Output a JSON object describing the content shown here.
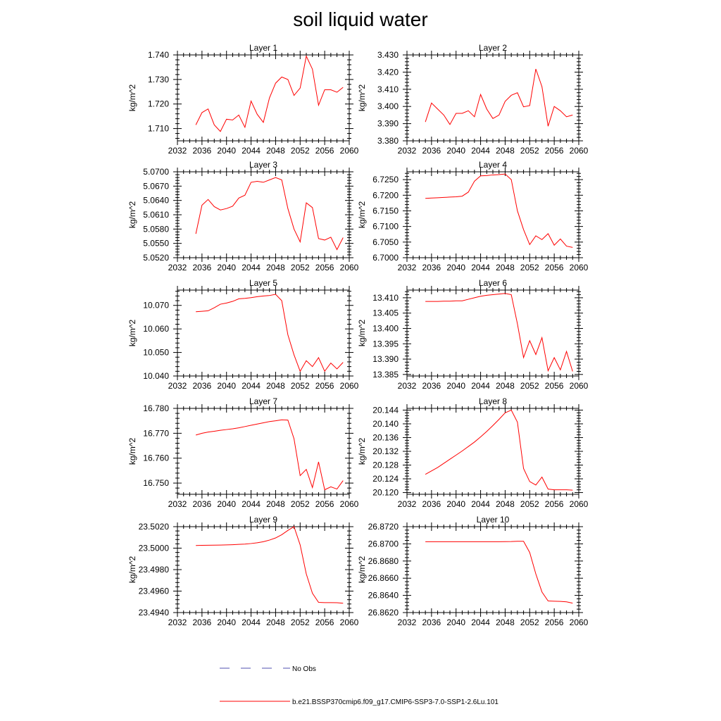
{
  "title": "soil liquid water",
  "chart_data": [
    {
      "type": "line",
      "title": "Layer 1",
      "ylabel": "kg/m^2",
      "xlim": [
        2032,
        2060
      ],
      "xticks": [
        2032,
        2036,
        2040,
        2044,
        2048,
        2052,
        2056,
        2060
      ],
      "ylim": [
        1.705,
        1.74
      ],
      "yticks": [
        "1.710",
        "1.720",
        "1.730",
        "1.740"
      ],
      "series": [
        {
          "name": "b.e21.BSSP370cmip6.f09_g17.CMIP6-SSP3-7.0-SSP1-2.6Lu.101",
          "x": [
            2035,
            2036,
            2037,
            2038,
            2039,
            2040,
            2041,
            2042,
            2043,
            2044,
            2045,
            2046,
            2047,
            2048,
            2049,
            2050,
            2051,
            2052,
            2053,
            2054,
            2055,
            2056,
            2057,
            2058,
            2059
          ],
          "values": [
            1.7115,
            1.7165,
            1.718,
            1.7115,
            1.7088,
            1.7138,
            1.7135,
            1.7155,
            1.7105,
            1.7212,
            1.7158,
            1.7125,
            1.7225,
            1.7285,
            1.731,
            1.73,
            1.7235,
            1.7265,
            1.7395,
            1.7342,
            1.7195,
            1.7258,
            1.7258,
            1.7248,
            1.7268
          ]
        }
      ]
    },
    {
      "type": "line",
      "title": "Layer 2",
      "ylabel": "kg/m^2",
      "xlim": [
        2032,
        2060
      ],
      "xticks": [
        2032,
        2036,
        2040,
        2044,
        2048,
        2052,
        2056,
        2060
      ],
      "ylim": [
        3.38,
        3.43
      ],
      "yticks": [
        "3.380",
        "3.390",
        "3.400",
        "3.410",
        "3.420",
        "3.430"
      ],
      "series": [
        {
          "name": "b.e21.BSSP370cmip6.f09_g17.CMIP6-SSP3-7.0-SSP1-2.6Lu.101",
          "x": [
            2035,
            2036,
            2037,
            2038,
            2039,
            2040,
            2041,
            2042,
            2043,
            2044,
            2045,
            2046,
            2047,
            2048,
            2049,
            2050,
            2051,
            2052,
            2053,
            2054,
            2055,
            2056,
            2057,
            2058,
            2059
          ],
          "values": [
            3.391,
            3.402,
            3.3985,
            3.395,
            3.3895,
            3.396,
            3.396,
            3.3975,
            3.394,
            3.407,
            3.3985,
            3.393,
            3.395,
            3.403,
            3.4065,
            3.408,
            3.3998,
            3.4005,
            3.4218,
            3.4115,
            3.3885,
            3.4,
            3.3975,
            3.394,
            3.395
          ]
        }
      ]
    },
    {
      "type": "line",
      "title": "Layer 3",
      "ylabel": "kg/m^2",
      "xlim": [
        2032,
        2060
      ],
      "xticks": [
        2032,
        2036,
        2040,
        2044,
        2048,
        2052,
        2056,
        2060
      ],
      "ylim": [
        5.052,
        5.07
      ],
      "yticks": [
        "5.0520",
        "5.0550",
        "5.0580",
        "5.0610",
        "5.0640",
        "5.0670",
        "5.0700"
      ],
      "series": [
        {
          "name": "b.e21.BSSP370cmip6.f09_g17.CMIP6-SSP3-7.0-SSP1-2.6Lu.101",
          "x": [
            2035,
            2036,
            2037,
            2038,
            2039,
            2040,
            2041,
            2042,
            2043,
            2044,
            2045,
            2046,
            2047,
            2048,
            2049,
            2050,
            2051,
            2052,
            2053,
            2054,
            2055,
            2056,
            2057,
            2058,
            2059
          ],
          "values": [
            5.057,
            5.063,
            5.0642,
            5.0627,
            5.062,
            5.0623,
            5.0628,
            5.0645,
            5.0651,
            5.0678,
            5.068,
            5.0678,
            5.0683,
            5.0688,
            5.0683,
            5.0623,
            5.058,
            5.0553,
            5.0635,
            5.0625,
            5.056,
            5.0557,
            5.0563,
            5.0537,
            5.0562
          ]
        }
      ]
    },
    {
      "type": "line",
      "title": "Layer 4",
      "ylabel": "kg/m^2",
      "xlim": [
        2032,
        2060
      ],
      "xticks": [
        2032,
        2036,
        2040,
        2044,
        2048,
        2052,
        2056,
        2060
      ],
      "ylim": [
        6.7,
        6.7275
      ],
      "yticks": [
        "6.7000",
        "6.7050",
        "6.7100",
        "6.7150",
        "6.7200",
        "6.7250"
      ],
      "series": [
        {
          "name": "b.e21.BSSP370cmip6.f09_g17.CMIP6-SSP3-7.0-SSP1-2.6Lu.101",
          "x": [
            2035,
            2036,
            2037,
            2038,
            2039,
            2040,
            2041,
            2042,
            2043,
            2044,
            2045,
            2046,
            2047,
            2048,
            2049,
            2050,
            2051,
            2052,
            2053,
            2054,
            2055,
            2056,
            2057,
            2058,
            2059
          ],
          "values": [
            6.719,
            6.7191,
            6.7192,
            6.7193,
            6.7194,
            6.7195,
            6.7197,
            6.721,
            6.7245,
            6.7262,
            6.7263,
            6.7265,
            6.7266,
            6.7268,
            6.725,
            6.715,
            6.709,
            6.7042,
            6.707,
            6.7058,
            6.7077,
            6.704,
            6.706,
            6.7037,
            6.7033
          ]
        }
      ]
    },
    {
      "type": "line",
      "title": "Layer 5",
      "ylabel": "kg/m^2",
      "xlim": [
        2032,
        2060
      ],
      "xticks": [
        2032,
        2036,
        2040,
        2044,
        2048,
        2052,
        2056,
        2060
      ],
      "ylim": [
        10.04,
        10.0765
      ],
      "yticks": [
        "10.040",
        "10.050",
        "10.060",
        "10.070"
      ],
      "series": [
        {
          "name": "b.e21.BSSP370cmip6.f09_g17.CMIP6-SSP3-7.0-SSP1-2.6Lu.101",
          "x": [
            2035,
            2036,
            2037,
            2038,
            2039,
            2040,
            2041,
            2042,
            2043,
            2044,
            2045,
            2046,
            2047,
            2048,
            2049,
            2050,
            2051,
            2052,
            2053,
            2054,
            2055,
            2056,
            2057,
            2058,
            2059
          ],
          "values": [
            10.0673,
            10.0675,
            10.0677,
            10.069,
            10.0705,
            10.071,
            10.0717,
            10.0728,
            10.073,
            10.0733,
            10.0737,
            10.074,
            10.0742,
            10.0747,
            10.072,
            10.0575,
            10.049,
            10.042,
            10.0465,
            10.044,
            10.0478,
            10.042,
            10.0455,
            10.043,
            10.0458
          ]
        }
      ]
    },
    {
      "type": "line",
      "title": "Layer 6",
      "ylabel": "kg/m^2",
      "xlim": [
        2032,
        2060
      ],
      "xticks": [
        2032,
        2036,
        2040,
        2044,
        2048,
        2052,
        2056,
        2060
      ],
      "ylim": [
        13.3845,
        13.4125
      ],
      "yticks": [
        "13.385",
        "13.390",
        "13.395",
        "13.400",
        "13.405",
        "13.410"
      ],
      "series": [
        {
          "name": "b.e21.BSSP370cmip6.f09_g17.CMIP6-SSP3-7.0-SSP1-2.6Lu.101",
          "x": [
            2035,
            2036,
            2037,
            2038,
            2039,
            2040,
            2041,
            2042,
            2043,
            2044,
            2045,
            2046,
            2047,
            2048,
            2049,
            2050,
            2051,
            2052,
            2053,
            2054,
            2055,
            2056,
            2057,
            2058,
            2059
          ],
          "values": [
            13.4088,
            13.4088,
            13.4088,
            13.4089,
            13.4089,
            13.409,
            13.409,
            13.4095,
            13.41,
            13.4105,
            13.4108,
            13.411,
            13.4112,
            13.4114,
            13.411,
            13.4015,
            13.3905,
            13.396,
            13.3915,
            13.397,
            13.3862,
            13.3905,
            13.3865,
            13.3925,
            13.386
          ]
        }
      ]
    },
    {
      "type": "line",
      "title": "Layer 7",
      "ylabel": "kg/m^2",
      "xlim": [
        2032,
        2060
      ],
      "xticks": [
        2032,
        2036,
        2040,
        2044,
        2048,
        2052,
        2056,
        2060
      ],
      "ylim": [
        16.7455,
        16.78
      ],
      "yticks": [
        "16.750",
        "16.760",
        "16.770",
        "16.780"
      ],
      "series": [
        {
          "name": "b.e21.BSSP370cmip6.f09_g17.CMIP6-SSP3-7.0-SSP1-2.6Lu.101",
          "x": [
            2035,
            2036,
            2037,
            2038,
            2039,
            2040,
            2041,
            2042,
            2043,
            2044,
            2045,
            2046,
            2047,
            2048,
            2049,
            2050,
            2051,
            2052,
            2053,
            2054,
            2055,
            2056,
            2057,
            2058,
            2059
          ],
          "values": [
            16.7693,
            16.77,
            16.7705,
            16.7708,
            16.7712,
            16.7715,
            16.7718,
            16.7722,
            16.7727,
            16.7732,
            16.7737,
            16.7742,
            16.7747,
            16.775,
            16.7754,
            16.7753,
            16.7678,
            16.753,
            16.7555,
            16.7482,
            16.7585,
            16.7473,
            16.7485,
            16.7476,
            16.751
          ]
        }
      ]
    },
    {
      "type": "line",
      "title": "Layer 8",
      "ylabel": "kg/m^2",
      "xlim": [
        2032,
        2060
      ],
      "xticks": [
        2032,
        2036,
        2040,
        2044,
        2048,
        2052,
        2056,
        2060
      ],
      "ylim": [
        20.1195,
        20.1445
      ],
      "yticks": [
        "20.120",
        "20.124",
        "20.128",
        "20.132",
        "20.136",
        "20.140",
        "20.144"
      ],
      "series": [
        {
          "name": "b.e21.BSSP370cmip6.f09_g17.CMIP6-SSP3-7.0-SSP1-2.6Lu.101",
          "x": [
            2035,
            2036,
            2037,
            2038,
            2039,
            2040,
            2041,
            2042,
            2043,
            2044,
            2045,
            2046,
            2047,
            2048,
            2049,
            2050,
            2051,
            2052,
            2053,
            2054,
            2055,
            2056,
            2057,
            2058,
            2059
          ],
          "values": [
            20.1253,
            20.1263,
            20.1273,
            20.1285,
            20.1297,
            20.1309,
            20.1321,
            20.1334,
            20.1347,
            20.1362,
            20.1378,
            20.1395,
            20.1413,
            20.1432,
            20.144,
            20.1405,
            20.127,
            20.1232,
            20.1222,
            20.1245,
            20.121,
            20.1208,
            20.1208,
            20.1208,
            20.1207
          ]
        }
      ]
    },
    {
      "type": "line",
      "title": "Layer 9",
      "ylabel": "kg/m^2",
      "xlim": [
        2032,
        2060
      ],
      "xticks": [
        2032,
        2036,
        2040,
        2044,
        2048,
        2052,
        2056,
        2060
      ],
      "ylim": [
        23.494,
        23.502
      ],
      "yticks": [
        "23.4940",
        "23.4960",
        "23.4980",
        "23.5000",
        "23.5020"
      ],
      "series": [
        {
          "name": "b.e21.BSSP370cmip6.f09_g17.CMIP6-SSP3-7.0-SSP1-2.6Lu.101",
          "x": [
            2035,
            2036,
            2037,
            2038,
            2039,
            2040,
            2041,
            2042,
            2043,
            2044,
            2045,
            2046,
            2047,
            2048,
            2049,
            2050,
            2051,
            2052,
            2053,
            2054,
            2055,
            2056,
            2057,
            2058,
            2059
          ],
          "values": [
            23.50025,
            23.50026,
            23.50027,
            23.50028,
            23.50029,
            23.5003,
            23.50032,
            23.50035,
            23.50038,
            23.50043,
            23.5005,
            23.5006,
            23.50075,
            23.50095,
            23.50125,
            23.50165,
            23.502,
            23.5003,
            23.4976,
            23.4958,
            23.49495,
            23.49493,
            23.49493,
            23.49492,
            23.49487
          ]
        }
      ]
    },
    {
      "type": "line",
      "title": "Layer 10",
      "ylabel": "kg/m^2",
      "xlim": [
        2032,
        2060
      ],
      "xticks": [
        2032,
        2036,
        2040,
        2044,
        2048,
        2052,
        2056,
        2060
      ],
      "ylim": [
        26.862,
        26.872
      ],
      "yticks": [
        "26.8620",
        "26.8640",
        "26.8660",
        "26.8680",
        "26.8700",
        "26.8720"
      ],
      "series": [
        {
          "name": "b.e21.BSSP370cmip6.f09_g17.CMIP6-SSP3-7.0-SSP1-2.6Lu.101",
          "x": [
            2035,
            2036,
            2037,
            2038,
            2039,
            2040,
            2041,
            2042,
            2043,
            2044,
            2045,
            2046,
            2047,
            2048,
            2049,
            2050,
            2051,
            2052,
            2053,
            2054,
            2055,
            2056,
            2057,
            2058,
            2059
          ],
          "values": [
            26.87025,
            26.87025,
            26.87025,
            26.87025,
            26.87025,
            26.87025,
            26.87025,
            26.87025,
            26.87025,
            26.87025,
            26.87025,
            26.87025,
            26.87025,
            26.87026,
            26.87027,
            26.8703,
            26.8703,
            26.869,
            26.8665,
            26.8644,
            26.86335,
            26.86332,
            26.8633,
            26.86325,
            26.8631
          ]
        }
      ]
    }
  ],
  "legend": {
    "entries": [
      {
        "label": "No Obs",
        "color": "#5050b0",
        "style": "dashed"
      },
      {
        "label": "b.e21.BSSP370cmip6.f09_g17.CMIP6-SSP3-7.0-SSP1-2.6Lu.101",
        "color": "#ff0000",
        "style": "solid"
      }
    ]
  },
  "colors": {
    "series": "#ff0000",
    "axis": "#000000"
  }
}
